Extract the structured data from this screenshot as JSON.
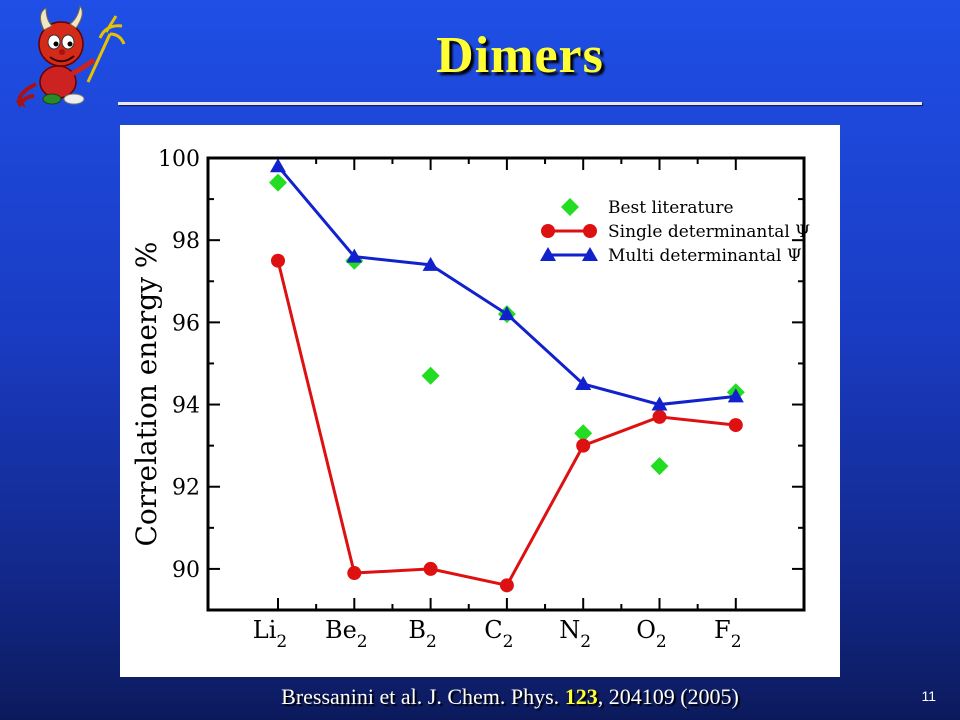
{
  "slide": {
    "title": "Dimers",
    "citation_prefix": "Bressanini et al. J. Chem. Phys.",
    "citation_volume": "123",
    "citation_suffix": ", 204109 (2005)",
    "page_number": "11",
    "colors": {
      "background": "#1a3cc4",
      "title": "#ffff33",
      "highlight": "#ffff33"
    },
    "mascot_icon": "devil-mascot-icon"
  },
  "chart_data": {
    "type": "line",
    "ylabel": "Correlation energy %",
    "xlabel": "",
    "categories": [
      {
        "base": "Li",
        "sub": "2"
      },
      {
        "base": "Be",
        "sub": "2"
      },
      {
        "base": "B",
        "sub": "2"
      },
      {
        "base": "C",
        "sub": "2"
      },
      {
        "base": "N",
        "sub": "2"
      },
      {
        "base": "O",
        "sub": "2"
      },
      {
        "base": "F",
        "sub": "2"
      }
    ],
    "ylim": [
      89,
      100
    ],
    "yticks": [
      90,
      92,
      94,
      96,
      98,
      100
    ],
    "grid": false,
    "legend_position": "top-right",
    "series": [
      {
        "name": "Best literature",
        "marker": "diamond",
        "line": false,
        "color": "#22dd22",
        "values": [
          99.4,
          97.5,
          94.7,
          96.2,
          93.3,
          92.5,
          94.3
        ]
      },
      {
        "name": "Single determinantal Ψ",
        "marker": "circle",
        "line": true,
        "color": "#dd1111",
        "values": [
          97.5,
          89.9,
          90.0,
          89.6,
          93.0,
          93.7,
          93.5
        ]
      },
      {
        "name": "Multi determinantal Ψ",
        "marker": "triangle",
        "line": true,
        "color": "#1122cc",
        "values": [
          99.8,
          97.6,
          97.4,
          96.2,
          94.5,
          94.0,
          94.2
        ]
      }
    ]
  }
}
